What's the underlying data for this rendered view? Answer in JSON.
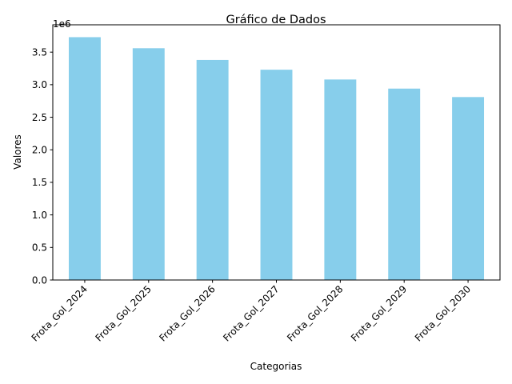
{
  "chart_data": {
    "type": "bar",
    "title": "Gráfico de Dados",
    "xlabel": "Categorias",
    "ylabel": "Valores",
    "offset_label": "1e6",
    "categories": [
      "Frota_Gol_2024",
      "Frota_Gol_2025",
      "Frota_Gol_2026",
      "Frota_Gol_2027",
      "Frota_Gol_2028",
      "Frota_Gol_2029",
      "Frota_Gol_2030"
    ],
    "values": [
      3730000,
      3560000,
      3380000,
      3230000,
      3080000,
      2940000,
      2810000
    ],
    "ylim": [
      0,
      3920000
    ],
    "yticks": [
      0,
      500000,
      1000000,
      1500000,
      2000000,
      2500000,
      3000000,
      3500000
    ],
    "ytick_labels": [
      "0.0",
      "0.5",
      "1.0",
      "1.5",
      "2.0",
      "2.5",
      "3.0",
      "3.5"
    ],
    "bar_color": "#87CEEB",
    "grid": false,
    "legend": "none"
  }
}
